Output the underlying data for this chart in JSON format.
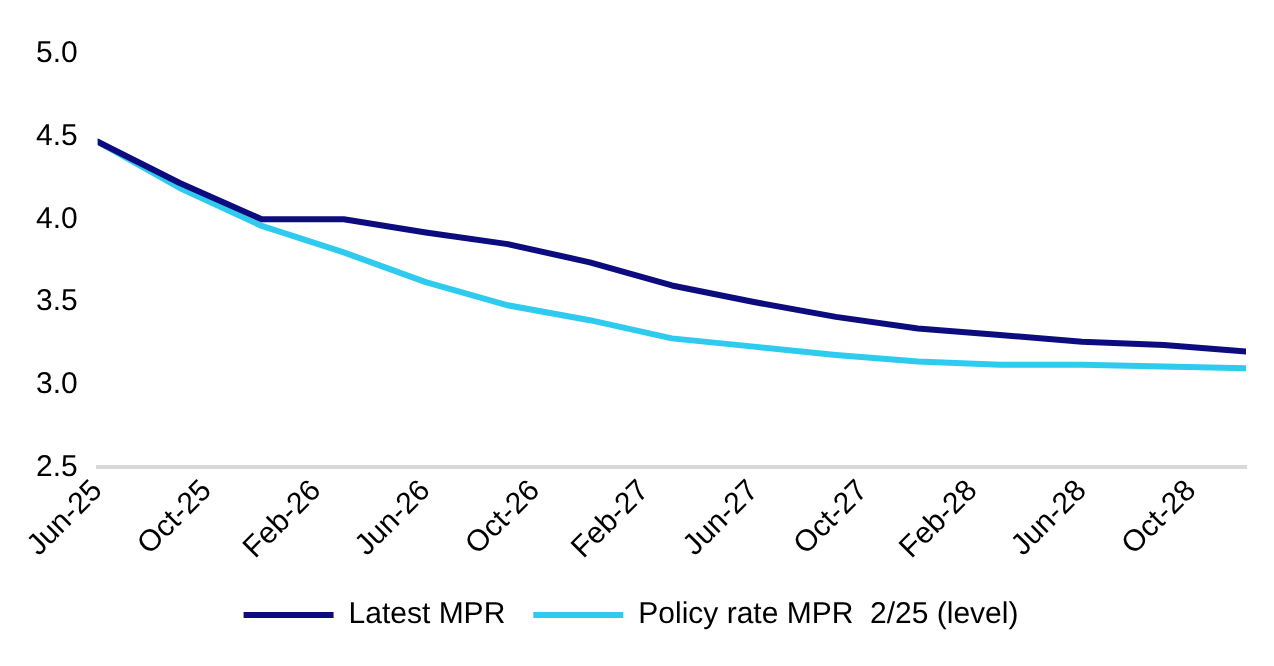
{
  "chart_data": {
    "type": "line",
    "x": [
      "2025-06",
      "2025-09",
      "2025-12",
      "2026-03",
      "2026-06",
      "2026-09",
      "2026-12",
      "2027-03",
      "2027-06",
      "2027-09",
      "2027-12",
      "2028-03",
      "2028-06",
      "2028-09",
      "2028-12"
    ],
    "series": [
      {
        "name": "Latest MPR",
        "color": "#0c0c7f",
        "values": [
          4.47,
          4.22,
          4.0,
          4.0,
          3.92,
          3.85,
          3.74,
          3.6,
          3.5,
          3.41,
          3.34,
          3.3,
          3.26,
          3.24,
          3.2
        ]
      },
      {
        "name": "Policy rate MPR  2/25 (level)",
        "color": "#2ecbee",
        "values": [
          4.47,
          4.19,
          3.96,
          3.8,
          3.62,
          3.48,
          3.39,
          3.28,
          3.23,
          3.18,
          3.14,
          3.12,
          3.12,
          3.11,
          3.1
        ]
      }
    ],
    "xlim": [
      "2025-06",
      "2028-12"
    ],
    "xticks": [
      {
        "value": "2025-06",
        "label": "Jun-25"
      },
      {
        "value": "2025-10",
        "label": "Oct-25"
      },
      {
        "value": "2026-02",
        "label": "Feb-26"
      },
      {
        "value": "2026-06",
        "label": "Jun-26"
      },
      {
        "value": "2026-10",
        "label": "Oct-26"
      },
      {
        "value": "2027-02",
        "label": "Feb-27"
      },
      {
        "value": "2027-06",
        "label": "Jun-27"
      },
      {
        "value": "2027-10",
        "label": "Oct-27"
      },
      {
        "value": "2028-02",
        "label": "Feb-28"
      },
      {
        "value": "2028-06",
        "label": "Jun-28"
      },
      {
        "value": "2028-10",
        "label": "Oct-28"
      }
    ],
    "ylim": [
      2.5,
      5.0
    ],
    "yticks": [
      {
        "value": 2.5,
        "label": "2.5"
      },
      {
        "value": 3.0,
        "label": "3.0"
      },
      {
        "value": 3.5,
        "label": "3.5"
      },
      {
        "value": 4.0,
        "label": "4.0"
      },
      {
        "value": 4.5,
        "label": "4.5"
      },
      {
        "value": 5.0,
        "label": "5.0"
      }
    ],
    "grid": false,
    "legend": "bottom",
    "marker": "none",
    "line_style": "solid"
  }
}
